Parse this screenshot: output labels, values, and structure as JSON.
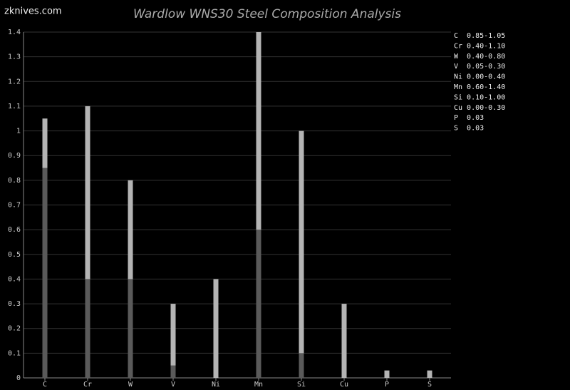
{
  "watermark": "zknives.com",
  "chart_data": {
    "type": "range-bar",
    "title": "Wardlow WNS30 Steel Composition Analysis",
    "categories": [
      "C",
      "Cr",
      "W",
      "V",
      "Ni",
      "Mn",
      "Si",
      "Cu",
      "P",
      "S"
    ],
    "series": [
      {
        "color": "#5a5a5a",
        "values": [
          0.85,
          0.4,
          0.4,
          0.05,
          0.0,
          0.6,
          0.1,
          0.0,
          null,
          null
        ]
      },
      {
        "color": "#b4b4b4",
        "values": [
          1.05,
          1.1,
          0.8,
          0.3,
          0.4,
          1.4,
          1.0,
          0.3,
          0.03,
          0.03
        ]
      }
    ],
    "legend_text": [
      "C  0.85-1.05",
      "Cr 0.40-1.10",
      "W  0.40-0.80",
      "V  0.05-0.30",
      "Ni 0.00-0.40",
      "Mn 0.60-1.40",
      "Si 0.10-1.00",
      "Cu 0.00-0.30",
      "P  0.03",
      "S  0.03"
    ],
    "ylim": [
      0,
      1.4
    ],
    "yticks": [
      0,
      0.1,
      0.2,
      0.3,
      0.4,
      0.5,
      0.6,
      0.7,
      0.8,
      0.9,
      1,
      1.1,
      1.2,
      1.3,
      1.4
    ],
    "grid": true
  }
}
